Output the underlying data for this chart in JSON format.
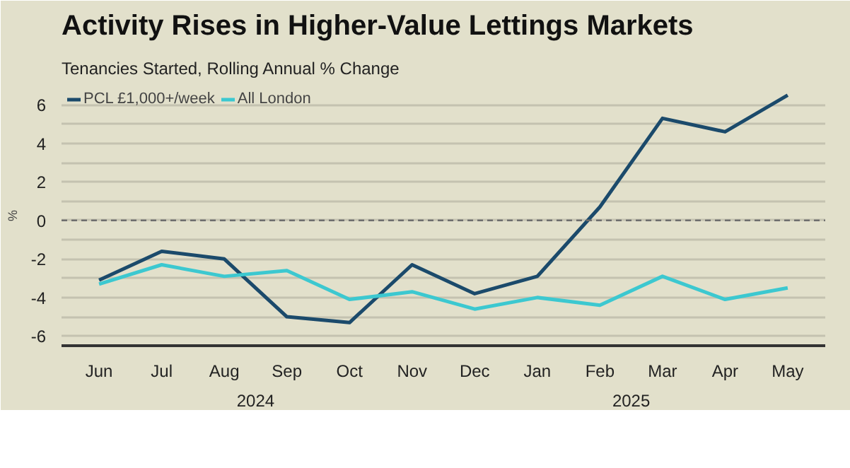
{
  "chart_data": {
    "type": "line",
    "title": "Activity Rises in Higher-Value Lettings Markets",
    "subtitle": "Tenancies Started, Rolling Annual % Change",
    "ylabel": "%",
    "categories": [
      "Jun",
      "Jul",
      "Aug",
      "Sep",
      "Oct",
      "Nov",
      "Dec",
      "Jan",
      "Feb",
      "Mar",
      "Apr",
      "May"
    ],
    "series": [
      {
        "name": "PCL £1,000+/week",
        "color": "#1b4a6b",
        "values": [
          -3.1,
          -1.6,
          -2.0,
          -5.0,
          -5.3,
          -2.3,
          -3.8,
          -2.9,
          0.7,
          5.3,
          4.6,
          6.5
        ]
      },
      {
        "name": "All London",
        "color": "#3cc8d0",
        "values": [
          -3.3,
          -2.3,
          -2.9,
          -2.6,
          -4.1,
          -3.7,
          -4.6,
          -4.0,
          -4.4,
          -2.9,
          -4.1,
          -3.5
        ]
      }
    ],
    "annotations": [
      "2024",
      "2025"
    ],
    "ylim": [
      -6.5,
      7
    ],
    "yticks": [
      -6,
      {
        "value": -5,
        "label": null
      },
      -4,
      {
        "value": -3,
        "label": null
      },
      -2,
      {
        "value": -1,
        "label": null
      },
      0,
      {
        "value": 1,
        "label": null
      },
      2,
      {
        "value": 3,
        "label": null
      },
      4,
      {
        "value": 5,
        "label": null
      },
      6,
      {
        "value": 7,
        "label": null
      }
    ],
    "ref_lines": [
      {
        "axis": "y",
        "value": 0,
        "line_style": "dashed",
        "color": "#6e6e6e"
      }
    ],
    "grid": "y",
    "legend": "top left",
    "marker": "none",
    "line_style": "solid"
  }
}
